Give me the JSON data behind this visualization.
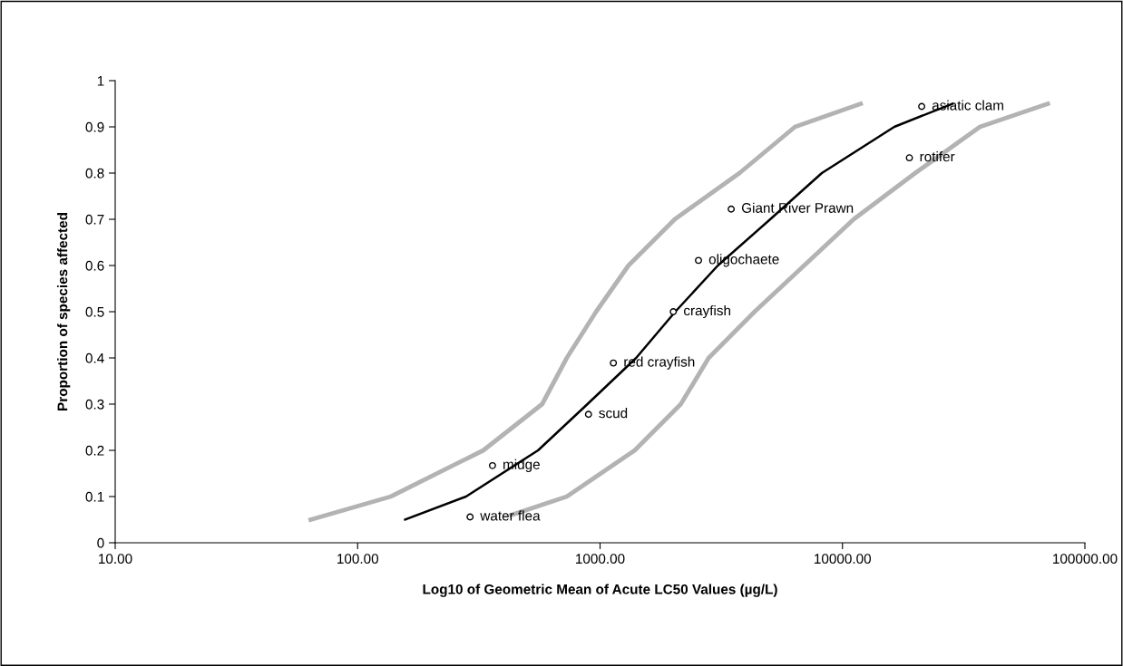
{
  "chart_data": {
    "type": "line",
    "xlabel": "Log10 of Geometric Mean of Acute LC50 Values (µg/L)",
    "ylabel": "Proportion of species affected",
    "log": "x",
    "grid": false,
    "xlim": [
      10,
      100000
    ],
    "xticks": [
      {
        "value": 10,
        "label": "10.00"
      },
      {
        "value": 100,
        "label": "100.00"
      },
      {
        "value": 1000,
        "label": "1000.00"
      },
      {
        "value": 10000,
        "label": "10000.00"
      },
      {
        "value": 100000,
        "label": "100000.00"
      }
    ],
    "ylim": [
      0,
      1
    ],
    "yticks": [
      0,
      0.1,
      0.2,
      0.3,
      0.4,
      0.5,
      0.6,
      0.7,
      0.8,
      0.9,
      1
    ],
    "series": [
      {
        "color": "#b3b3b3",
        "x": [
          64,
          137,
          330,
          577,
          729,
          963,
          1310,
          2033,
          3760,
          6370,
          11880
        ],
        "values": [
          0.05,
          0.1,
          0.2,
          0.3,
          0.4,
          0.5,
          0.6,
          0.7,
          0.8,
          0.9,
          0.95
        ]
      },
      {
        "color": "#b3b3b3",
        "x": [
          431,
          729,
          1390,
          2153,
          2806,
          4340,
          6950,
          11120,
          19950,
          36900,
          70300
        ],
        "values": [
          0.06,
          0.1,
          0.2,
          0.3,
          0.4,
          0.5,
          0.6,
          0.7,
          0.8,
          0.9,
          0.95
        ]
      },
      {
        "color": "#000000",
        "x": [
          157,
          280,
          555,
          887,
          1409,
          2043,
          3062,
          5035,
          8220,
          16360,
          28400
        ],
        "values": [
          0.05,
          0.1,
          0.2,
          0.3,
          0.4,
          0.5,
          0.6,
          0.7,
          0.8,
          0.9,
          0.95
        ]
      },
      {
        "type": "scatter",
        "color": "#000000",
        "marker": "circle",
        "x": [
          291,
          360,
          896,
          1135,
          2005,
          2547,
          3475,
          18880,
          21220
        ],
        "values": [
          0.056,
          0.167,
          0.278,
          0.389,
          0.5,
          0.611,
          0.722,
          0.833,
          0.944
        ]
      }
    ],
    "annotations": [
      {
        "text": "water flea",
        "x": 291,
        "y": 0.056
      },
      {
        "text": "midge",
        "x": 360,
        "y": 0.167
      },
      {
        "text": "scud",
        "x": 896,
        "y": 0.278
      },
      {
        "text": "red crayfish",
        "x": 1135,
        "y": 0.389
      },
      {
        "text": "crayfish",
        "x": 2005,
        "y": 0.5
      },
      {
        "text": "oligochaete",
        "x": 2547,
        "y": 0.611
      },
      {
        "text": "Giant River Prawn",
        "x": 3475,
        "y": 0.722
      },
      {
        "text": "rotifer",
        "x": 18880,
        "y": 0.833
      },
      {
        "text": "asiatic clam",
        "x": 21220,
        "y": 0.944
      }
    ]
  }
}
